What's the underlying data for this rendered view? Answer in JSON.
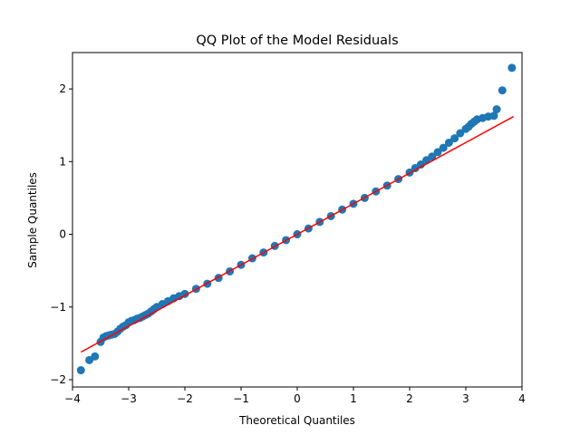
{
  "chart_data": {
    "type": "scatter",
    "title": "QQ Plot of the Model Residuals",
    "xlabel": "Theoretical Quantiles",
    "ylabel": "Sample Quantiles",
    "xlim": [
      -4.0,
      4.0
    ],
    "ylim": [
      -2.1,
      2.5
    ],
    "grid": false,
    "x_ticks": [
      {
        "value": -4,
        "label": "−4"
      },
      {
        "value": -3,
        "label": "−3"
      },
      {
        "value": -2,
        "label": "−2"
      },
      {
        "value": -1,
        "label": "−1"
      },
      {
        "value": 0,
        "label": "0"
      },
      {
        "value": 1,
        "label": "1"
      },
      {
        "value": 2,
        "label": "2"
      },
      {
        "value": 3,
        "label": "3"
      },
      {
        "value": 4,
        "label": "4"
      }
    ],
    "y_ticks": [
      {
        "value": -2,
        "label": "−2"
      },
      {
        "value": -1,
        "label": "−1"
      },
      {
        "value": 0,
        "label": "0"
      },
      {
        "value": 1,
        "label": "1"
      },
      {
        "value": 2,
        "label": "2"
      }
    ],
    "colors": {
      "points": "#1f77b4",
      "reference_line": "#ff0000"
    },
    "reference_line": {
      "x": [
        -3.85,
        3.85
      ],
      "y": [
        -1.62,
        1.62
      ]
    },
    "points": {
      "x": [
        -3.85,
        -3.7,
        -3.6,
        -3.5,
        -3.45,
        -3.4,
        -3.35,
        -3.3,
        -3.25,
        -3.2,
        -3.15,
        -3.1,
        -3.05,
        -3.0,
        -2.95,
        -2.9,
        -2.85,
        -2.8,
        -2.75,
        -2.7,
        -2.65,
        -2.6,
        -2.55,
        -2.5,
        -2.4,
        -2.3,
        -2.2,
        -2.1,
        -2.0,
        -1.8,
        -1.6,
        -1.4,
        -1.2,
        -1.0,
        -0.8,
        -0.6,
        -0.4,
        -0.2,
        0.0,
        0.2,
        0.4,
        0.6,
        0.8,
        1.0,
        1.2,
        1.4,
        1.6,
        1.8,
        2.0,
        2.1,
        2.2,
        2.3,
        2.4,
        2.5,
        2.6,
        2.7,
        2.8,
        2.9,
        3.0,
        3.05,
        3.1,
        3.15,
        3.2,
        3.3,
        3.4,
        3.5,
        3.55,
        3.65,
        3.82
      ],
      "y": [
        -1.87,
        -1.73,
        -1.68,
        -1.48,
        -1.42,
        -1.4,
        -1.39,
        -1.38,
        -1.37,
        -1.34,
        -1.3,
        -1.27,
        -1.25,
        -1.21,
        -1.19,
        -1.18,
        -1.16,
        -1.15,
        -1.13,
        -1.11,
        -1.09,
        -1.06,
        -1.03,
        -1.0,
        -0.96,
        -0.92,
        -0.88,
        -0.85,
        -0.82,
        -0.75,
        -0.68,
        -0.6,
        -0.51,
        -0.42,
        -0.33,
        -0.25,
        -0.16,
        -0.08,
        0.0,
        0.08,
        0.17,
        0.25,
        0.34,
        0.42,
        0.5,
        0.59,
        0.67,
        0.76,
        0.85,
        0.91,
        0.96,
        1.02,
        1.07,
        1.13,
        1.19,
        1.26,
        1.32,
        1.39,
        1.45,
        1.48,
        1.52,
        1.55,
        1.58,
        1.6,
        1.62,
        1.63,
        1.72,
        1.98,
        2.29
      ]
    }
  }
}
